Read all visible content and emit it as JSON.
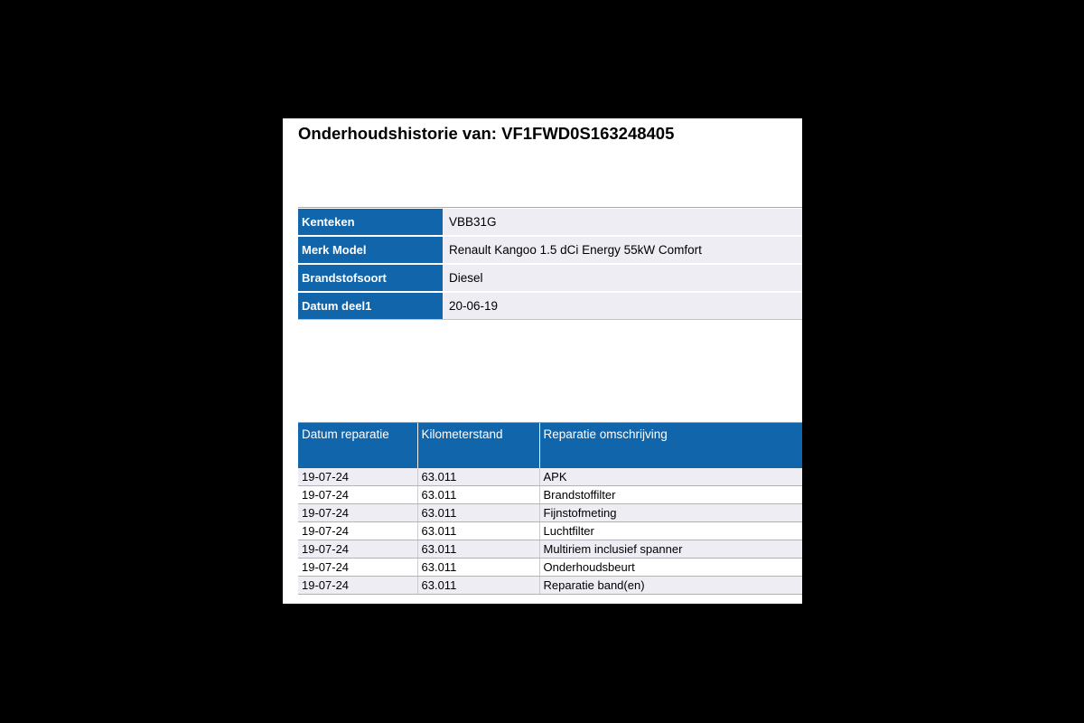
{
  "title": "Onderhoudshistorie van: VF1FWD0S163248405",
  "colors": {
    "header_blue": "#1065ab",
    "row_alt": "#ededf3",
    "row_border": "#b2b2b8",
    "page_bg": "#000000",
    "doc_bg": "#ffffff"
  },
  "vehicle_info": {
    "rows": [
      {
        "label": "Kenteken",
        "value": "VBB31G"
      },
      {
        "label": "Merk Model",
        "value": "Renault Kangoo 1.5 dCi Energy 55kW Comfort"
      },
      {
        "label": "Brandstofsoort",
        "value": "Diesel"
      },
      {
        "label": "Datum deel1",
        "value": "20-06-19"
      }
    ]
  },
  "repairs": {
    "columns": [
      "Datum reparatie",
      "Kilometerstand",
      "Reparatie omschrijving"
    ],
    "rows": [
      [
        "19-07-24",
        "63.011",
        "APK"
      ],
      [
        "19-07-24",
        "63.011",
        "Brandstoffilter"
      ],
      [
        "19-07-24",
        "63.011",
        "Fijnstofmeting"
      ],
      [
        "19-07-24",
        "63.011",
        "Luchtfilter"
      ],
      [
        "19-07-24",
        "63.011",
        "Multiriem inclusief spanner"
      ],
      [
        "19-07-24",
        "63.011",
        "Onderhoudsbeurt"
      ],
      [
        "19-07-24",
        "63.011",
        "Reparatie band(en)"
      ]
    ]
  }
}
